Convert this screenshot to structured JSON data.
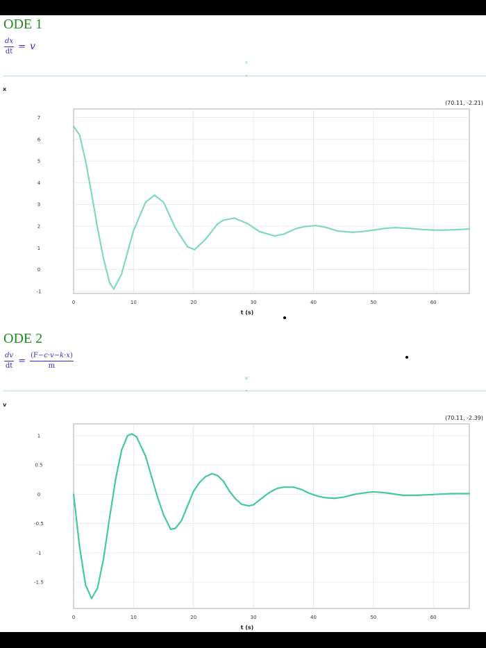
{
  "colors": {
    "title": "#1f8a1f",
    "equation": "#3030c8",
    "series1": "#7fd9be",
    "series2": "#42c99d"
  },
  "ode1": {
    "title": "ODE 1",
    "lhs_num": "dx",
    "lhs_den": "dt",
    "equals": "=",
    "rhs": "v",
    "legend": "x",
    "var_label": "x",
    "coord_readout": "(70.11, -2.21)"
  },
  "ode2": {
    "title": "ODE 2",
    "lhs_num": "dv",
    "lhs_den": "dt",
    "equals": "=",
    "rhs_num_open": "(F−",
    "rhs_num_c": "c",
    "rhs_num_dot1": "·",
    "rhs_num_v": "v",
    "rhs_num_minus": "−",
    "rhs_num_k": "k",
    "rhs_num_dot2": "·",
    "rhs_num_x": "x",
    "rhs_num_close": ")",
    "rhs_den": "m",
    "legend": "v",
    "var_label": "v",
    "coord_readout": "(70.11, -2.39)"
  },
  "chart_data": [
    {
      "type": "line",
      "series": [
        {
          "name": "x",
          "x": [
            0,
            1,
            2,
            3,
            4,
            5,
            6,
            6.7,
            8,
            10,
            12,
            13.5,
            15,
            17,
            19,
            20.2,
            22,
            24,
            25,
            26.8,
            29,
            31,
            33.5,
            35,
            37,
            38.5,
            40.3,
            42,
            44,
            46.5,
            48,
            50,
            52,
            53.6,
            56,
            58,
            60,
            62,
            64,
            66
          ],
          "y": [
            6.6,
            6.2,
            5.0,
            3.5,
            1.9,
            0.5,
            -0.6,
            -0.9,
            -0.2,
            1.8,
            3.1,
            3.43,
            3.1,
            1.9,
            1.05,
            0.92,
            1.4,
            2.1,
            2.28,
            2.37,
            2.12,
            1.75,
            1.55,
            1.63,
            1.88,
            1.98,
            2.03,
            1.95,
            1.78,
            1.72,
            1.75,
            1.82,
            1.9,
            1.93,
            1.9,
            1.85,
            1.82,
            1.82,
            1.84,
            1.87
          ]
        }
      ],
      "xlabel": "t (s)",
      "ylabel": "",
      "xlim": [
        0,
        66
      ],
      "ylim": [
        -1.1,
        7.4
      ],
      "xticks": [
        0,
        10,
        20,
        30,
        40,
        50,
        60
      ],
      "yticks": [
        -1,
        0,
        1,
        2,
        3,
        4,
        5,
        6,
        7
      ],
      "grid": true
    },
    {
      "type": "line",
      "series": [
        {
          "name": "v",
          "x": [
            0,
            1,
            2,
            3,
            4,
            5,
            6,
            7,
            8,
            9,
            9.7,
            10.5,
            12,
            13,
            14,
            15,
            16.2,
            17,
            18,
            19,
            20,
            21,
            22,
            23.1,
            24,
            25,
            26,
            27,
            28,
            29.2,
            30,
            31,
            32,
            33,
            34,
            35,
            36.7,
            38,
            39,
            40,
            41,
            42,
            43.5,
            45,
            47,
            49,
            50,
            51.5,
            53,
            55,
            57,
            59,
            61,
            63,
            65,
            66
          ],
          "y": [
            0,
            -0.9,
            -1.55,
            -1.78,
            -1.6,
            -1.1,
            -0.4,
            0.25,
            0.75,
            1.0,
            1.03,
            0.98,
            0.65,
            0.3,
            -0.05,
            -0.35,
            -0.6,
            -0.58,
            -0.45,
            -0.2,
            0.05,
            0.2,
            0.3,
            0.35,
            0.32,
            0.22,
            0.05,
            -0.08,
            -0.17,
            -0.2,
            -0.18,
            -0.1,
            -0.02,
            0.05,
            0.1,
            0.12,
            0.12,
            0.08,
            0.03,
            -0.01,
            -0.04,
            -0.06,
            -0.07,
            -0.05,
            0.0,
            0.03,
            0.04,
            0.03,
            0.01,
            -0.02,
            -0.02,
            -0.01,
            0.0,
            0.01,
            0.01,
            0.01
          ]
        }
      ],
      "xlabel": "t (s)",
      "ylabel": "",
      "xlim": [
        0,
        66
      ],
      "ylim": [
        -1.95,
        1.2
      ],
      "xticks": [
        0,
        10,
        20,
        30,
        40,
        50,
        60
      ],
      "yticks": [
        -1.5,
        -1,
        -0.5,
        0,
        0.5,
        1
      ],
      "grid": true
    }
  ]
}
